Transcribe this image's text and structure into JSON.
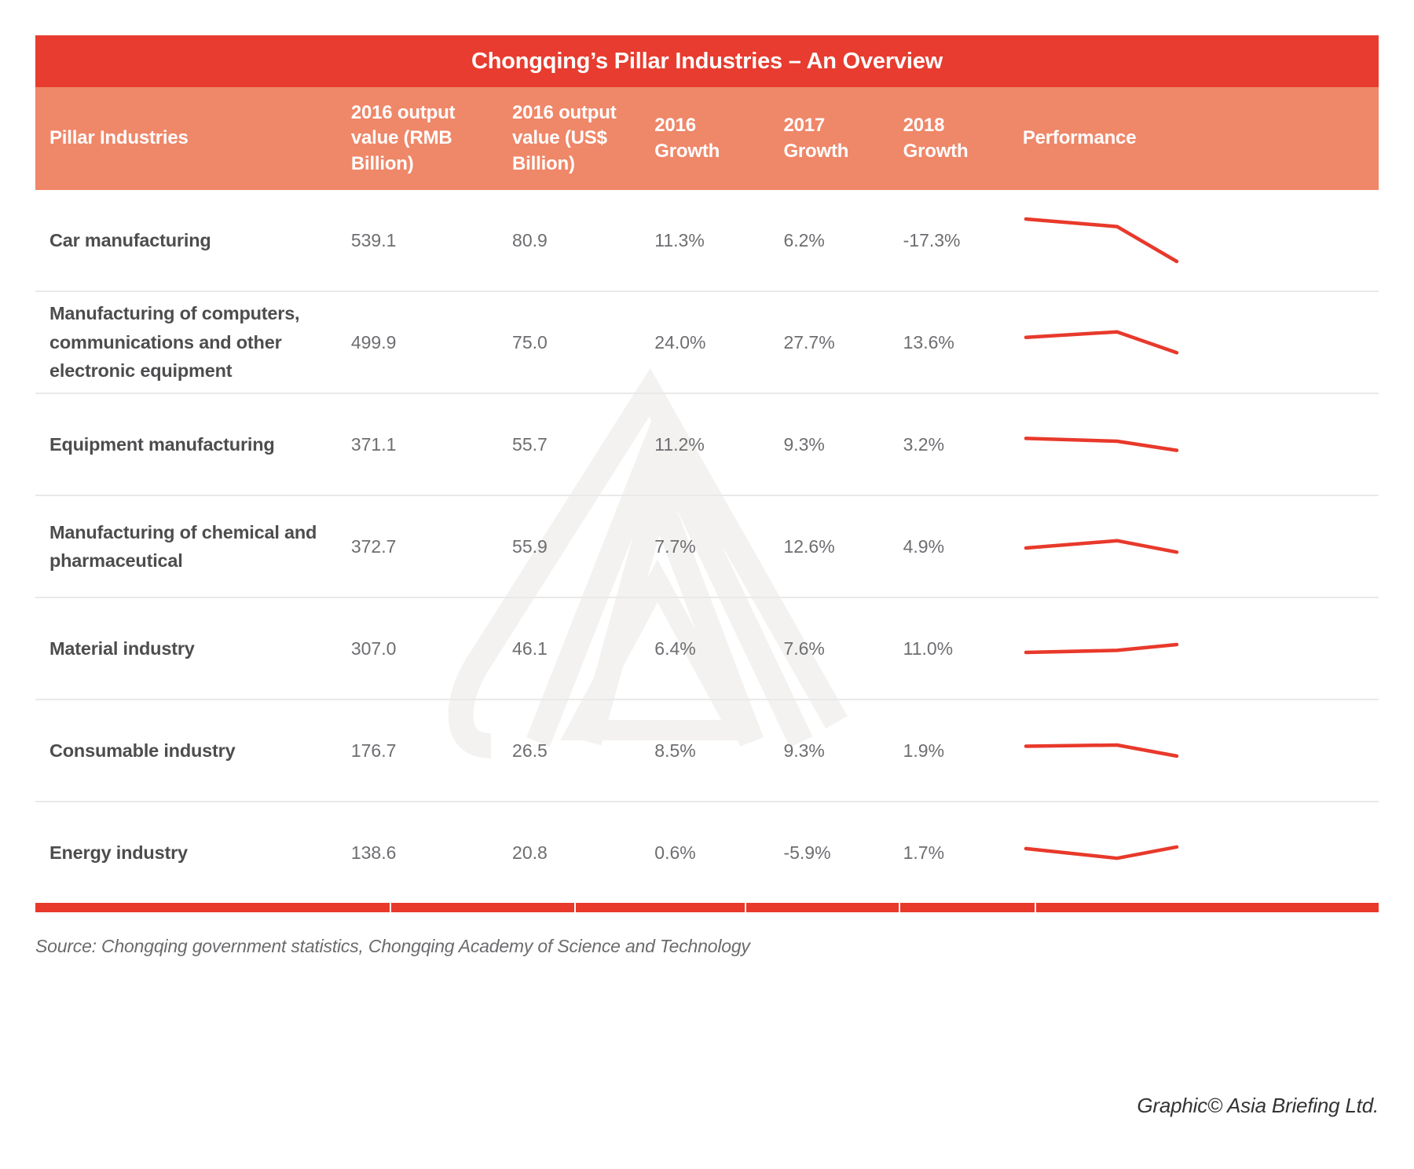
{
  "title": "Chongqing’s Pillar Industries – An Overview",
  "columns": {
    "industry": "Pillar Industries",
    "rmb": "2016 output\nvalue (RMB\nBillion)",
    "usd": "2016 output\nvalue (US$\nBillion)",
    "g2016": "2016\nGrowth",
    "g2017": "2017\nGrowth",
    "g2018": "2018\nGrowth",
    "performance": "Performance"
  },
  "rows": [
    {
      "industry": "Car manufacturing",
      "rmb": "539.1",
      "usd": "80.9",
      "g2016": "11.3%",
      "g2017": "6.2%",
      "g2018": "-17.3%"
    },
    {
      "industry": "Manufacturing of computers, communications and other electronic equipment",
      "rmb": "499.9",
      "usd": "75.0",
      "g2016": "24.0%",
      "g2017": "27.7%",
      "g2018": "13.6%"
    },
    {
      "industry": "Equipment manufacturing",
      "rmb": "371.1",
      "usd": "55.7",
      "g2016": "11.2%",
      "g2017": "9.3%",
      "g2018": "3.2%"
    },
    {
      "industry": "Manufacturing of chemical and pharmaceutical",
      "rmb": "372.7",
      "usd": "55.9",
      "g2016": "7.7%",
      "g2017": "12.6%",
      "g2018": "4.9%"
    },
    {
      "industry": "Material industry",
      "rmb": "307.0",
      "usd": "46.1",
      "g2016": "6.4%",
      "g2017": "7.6%",
      "g2018": "11.0%"
    },
    {
      "industry": "Consumable industry",
      "rmb": "176.7",
      "usd": "26.5",
      "g2016": "8.5%",
      "g2017": "9.3%",
      "g2018": "1.9%"
    },
    {
      "industry": "Energy industry",
      "rmb": "138.6",
      "usd": "20.8",
      "g2016": "0.6%",
      "g2017": "-5.9%",
      "g2018": "1.7%"
    }
  ],
  "footer": {
    "source": "Source: Chongqing government statistics, Chongqing Academy of Science and Technology",
    "credit": "Graphic© Asia Briefing Ltd."
  },
  "colors": {
    "title_red": "#E73C2F",
    "header_salmon": "#EF8769",
    "accent_red": "#E8392B",
    "name_text": "#4D4D4F",
    "value_text": "#6D6E71",
    "separator": "#E9E9E9",
    "watermark": "#F3F2F0"
  },
  "chart_data": {
    "type": "table",
    "title": "Chongqing’s Pillar Industries – An Overview",
    "columns": [
      "Pillar Industries",
      "2016 output value (RMB Billion)",
      "2016 output value (US$ Billion)",
      "2016 Growth",
      "2017 Growth",
      "2018 Growth",
      "Performance"
    ],
    "rows": [
      [
        "Car manufacturing",
        539.1,
        80.9,
        "11.3%",
        "6.2%",
        "-17.3%"
      ],
      [
        "Manufacturing of computers, communications and other electronic equipment",
        499.9,
        75.0,
        "24.0%",
        "27.7%",
        "13.6%"
      ],
      [
        "Equipment manufacturing",
        371.1,
        55.7,
        "11.2%",
        "9.3%",
        "3.2%"
      ],
      [
        "Manufacturing of chemical and pharmaceutical",
        372.7,
        55.9,
        "7.7%",
        "12.6%",
        "4.9%"
      ],
      [
        "Material industry",
        307.0,
        46.1,
        "6.4%",
        "7.6%",
        "11.0%"
      ],
      [
        "Consumable industry",
        176.7,
        26.5,
        "8.5%",
        "9.3%",
        "1.9%"
      ],
      [
        "Energy industry",
        138.6,
        20.8,
        "0.6%",
        "-5.9%",
        "1.7%"
      ]
    ],
    "performance_sparklines": {
      "type": "line",
      "x": [
        2016,
        2017,
        2018
      ],
      "series": [
        {
          "name": "Car manufacturing",
          "values": [
            11.3,
            6.2,
            -17.3
          ]
        },
        {
          "name": "Manufacturing of computers, communications and other electronic equipment",
          "values": [
            24.0,
            27.7,
            13.6
          ]
        },
        {
          "name": "Equipment manufacturing",
          "values": [
            11.2,
            9.3,
            3.2
          ]
        },
        {
          "name": "Manufacturing of chemical and pharmaceutical",
          "values": [
            7.7,
            12.6,
            4.9
          ]
        },
        {
          "name": "Material industry",
          "values": [
            6.4,
            7.6,
            11.0
          ]
        },
        {
          "name": "Consumable industry",
          "values": [
            8.5,
            9.3,
            1.9
          ]
        },
        {
          "name": "Energy industry",
          "values": [
            0.6,
            -5.9,
            1.7
          ]
        }
      ]
    }
  }
}
